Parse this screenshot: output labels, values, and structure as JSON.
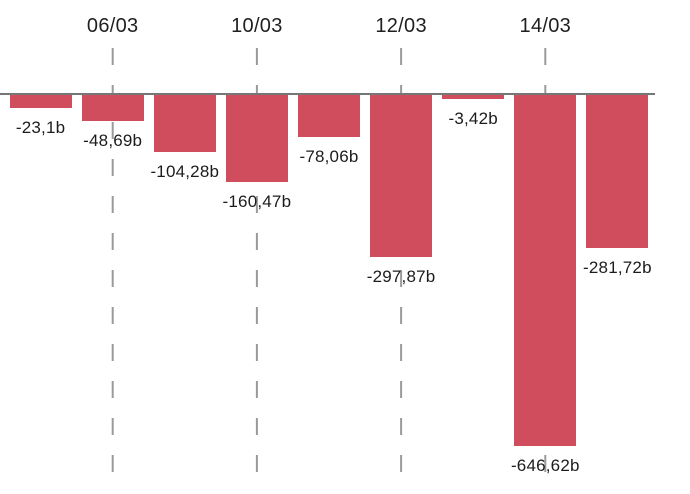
{
  "chart_data": {
    "type": "bar",
    "title": "",
    "orientation": "vertical",
    "baseline": 0,
    "ylim": [
      -700,
      0
    ],
    "grid": "vertical-dashed",
    "legend": "none",
    "value_suffix": "b",
    "decimal_separator": ",",
    "x_tick_labels": [
      "06/03",
      "10/03",
      "12/03",
      "14/03"
    ],
    "gridline_bar_indexes": [
      1,
      3,
      5,
      7
    ],
    "bars": [
      {
        "value": -23.1,
        "label": "-23,1b"
      },
      {
        "value": -48.69,
        "label": "-48,69b"
      },
      {
        "value": -104.28,
        "label": "-104,28b"
      },
      {
        "value": -160.47,
        "label": "-160,47b"
      },
      {
        "value": -78.06,
        "label": "-78,06b"
      },
      {
        "value": -297.87,
        "label": "-297,87b"
      },
      {
        "value": -3.42,
        "label": "-3,42b"
      },
      {
        "value": -646.62,
        "label": "-646,62b"
      },
      {
        "value": -281.72,
        "label": "-281,72b"
      }
    ],
    "colors": {
      "bar": "#d04d5e",
      "axis_line": "#767676",
      "gridline": "#9a9a9a",
      "value_label": "#1c1c1c",
      "tick_label": "#1f1f1f",
      "background": "#ffffff"
    }
  }
}
